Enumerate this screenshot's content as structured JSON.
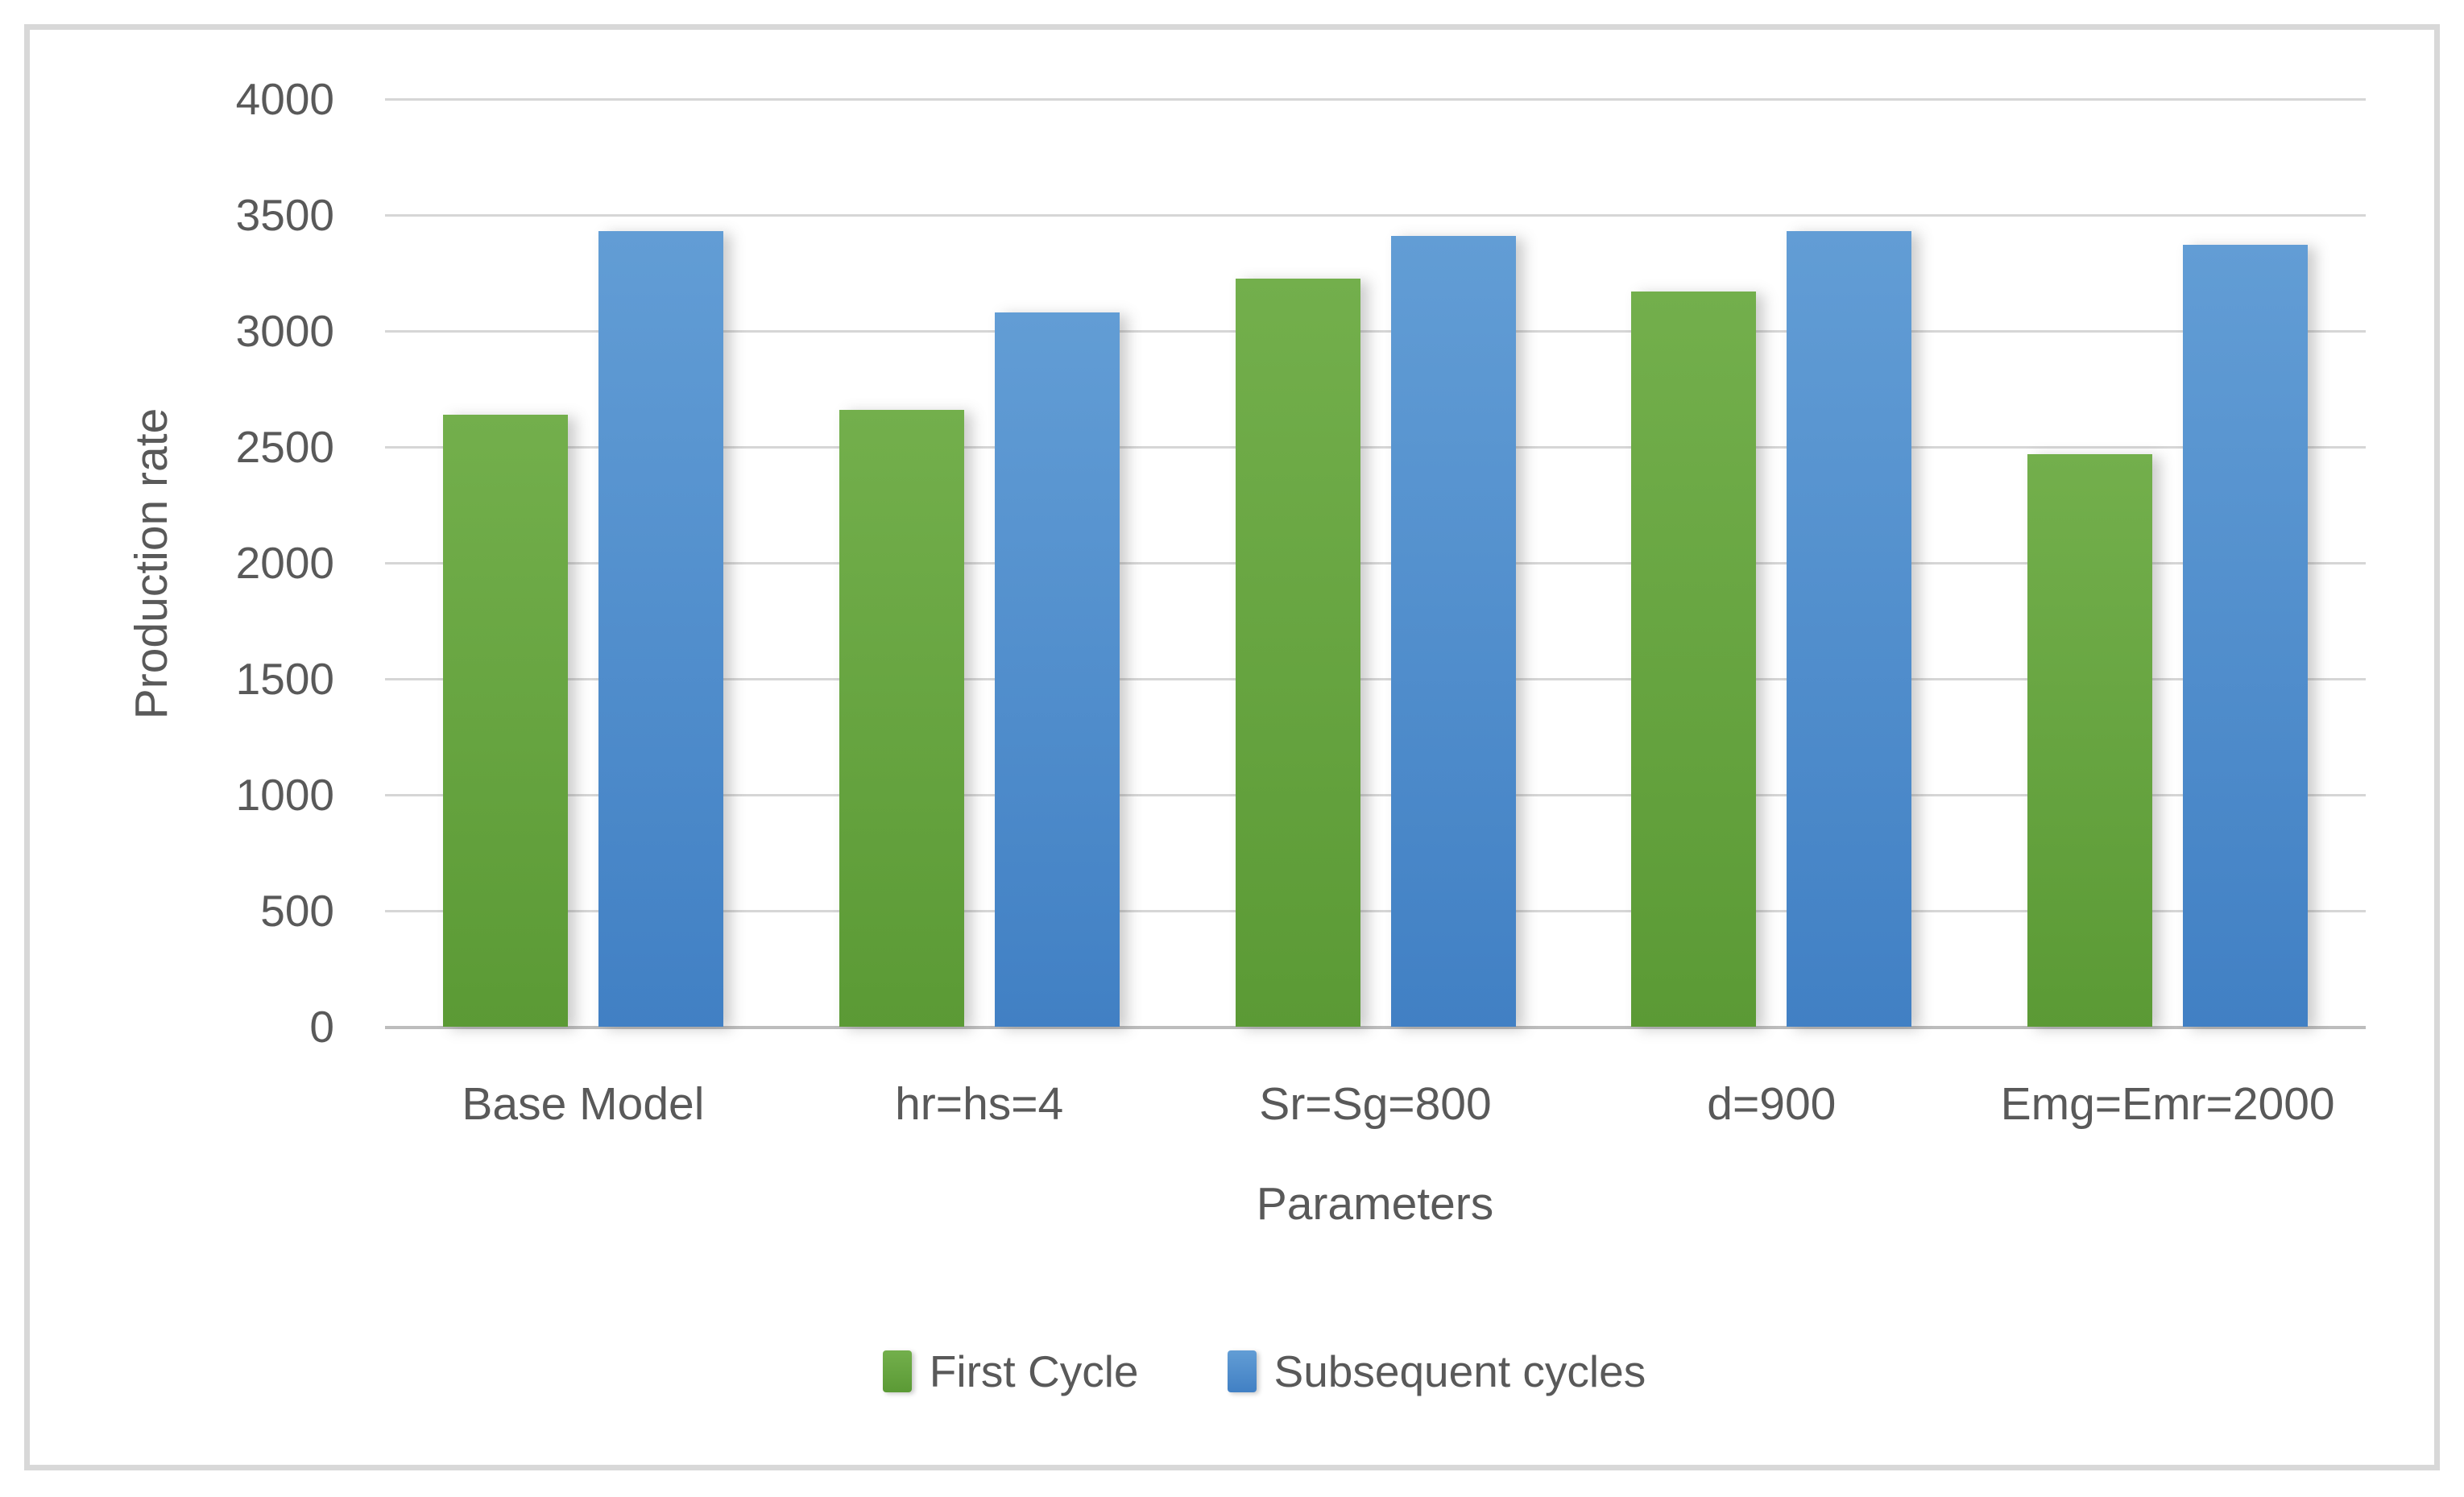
{
  "figure": {
    "background": "#ffffff",
    "border_color": "#d8d8d8"
  },
  "style": {
    "text_color": "#595959",
    "gridline_color": "#d6d6d6",
    "axis_baseline_color": "#bdbdbd"
  },
  "chart_data": {
    "type": "bar",
    "title": "",
    "xlabel": "Parameters",
    "ylabel": "Production rate",
    "ylim": [
      0,
      4000
    ],
    "ytick_step": 500,
    "yticks": [
      0,
      500,
      1000,
      1500,
      2000,
      2500,
      3000,
      3500,
      4000
    ],
    "grid": "horizontal",
    "legend_position": "bottom",
    "categories": [
      "Base Model",
      "hr=hs=4",
      "Sr=Sg=800",
      "d=900",
      "Emg=Emr=2000"
    ],
    "series": [
      {
        "name": "First Cycle",
        "color": "#70ad47",
        "gradient_top": "#73af4c",
        "gradient_bottom": "#5b9a35",
        "values": [
          2640,
          2660,
          3225,
          3170,
          2470
        ]
      },
      {
        "name": "Subsequent cycles",
        "color": "#5b9bd5",
        "gradient_top": "#629dd5",
        "gradient_bottom": "#4180c4",
        "values": [
          3430,
          3080,
          3410,
          3430,
          3370
        ]
      }
    ]
  }
}
